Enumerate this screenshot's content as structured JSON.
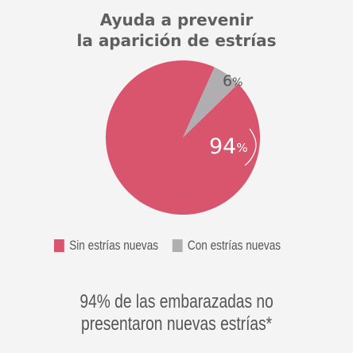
{
  "title_line1": "Ayuda a prevenir",
  "title_line2": "la aparición de estrías",
  "chart_data": {
    "type": "pie",
    "slices": [
      {
        "label": "Sin estrías nuevas",
        "value": 94,
        "value_label": "94",
        "unit": "%",
        "color": "#d9546d"
      },
      {
        "label": "Con estrías nuevas",
        "value": 6,
        "value_label": "6",
        "unit": "%",
        "color": "#b0aeb0"
      }
    ]
  },
  "caption_line1": "94% de las embarazadas no",
  "caption_line2": "presentaron nuevas estrías*"
}
